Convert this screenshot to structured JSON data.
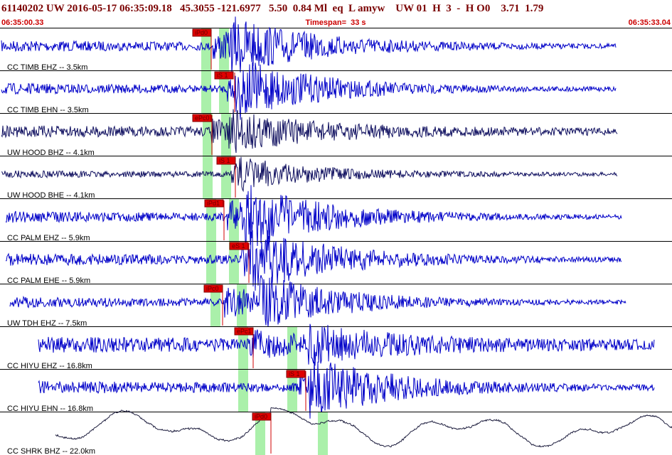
{
  "header": {
    "event_line": "61140202 UW 2016-05-17 06:35:09.18   45.3055 -121.6977   5.50  0.84 Ml  eq  L amyw    UW 01  H  3  -  H O0    3.71  1.79",
    "start_time": "06:35:00.33",
    "timespan": "Timespan=  33 s",
    "end_time": "06:35:33.04"
  },
  "traces": [
    {
      "label": "CC TIMB EHZ -- 3.5km",
      "pick": "iPd0"
    },
    {
      "label": "CC TIMB EHN -- 3.5km",
      "pick": "iS 1"
    },
    {
      "label": "UW HOOD BHZ -- 4.1km",
      "pick": "ePc0"
    },
    {
      "label": "UW HOOD BHE -- 4.1km",
      "pick": "iS 1"
    },
    {
      "label": "CC PALM EHZ -- 5.9km",
      "pick": "iPd1"
    },
    {
      "label": "CC PALM EHE -- 5.9km",
      "pick": "eS 1"
    },
    {
      "label": "UW TDH EHZ -- 7.5km",
      "pick": "iPc0"
    },
    {
      "label": "CC HIYU EHZ -- 16.8km",
      "pick": "ePc1"
    },
    {
      "label": "CC HIYU EHN -- 16.8km",
      "pick": "iS 1"
    },
    {
      "label": "CC SHRK BHZ -- 22.0km",
      "pick": "iPd0"
    }
  ]
}
